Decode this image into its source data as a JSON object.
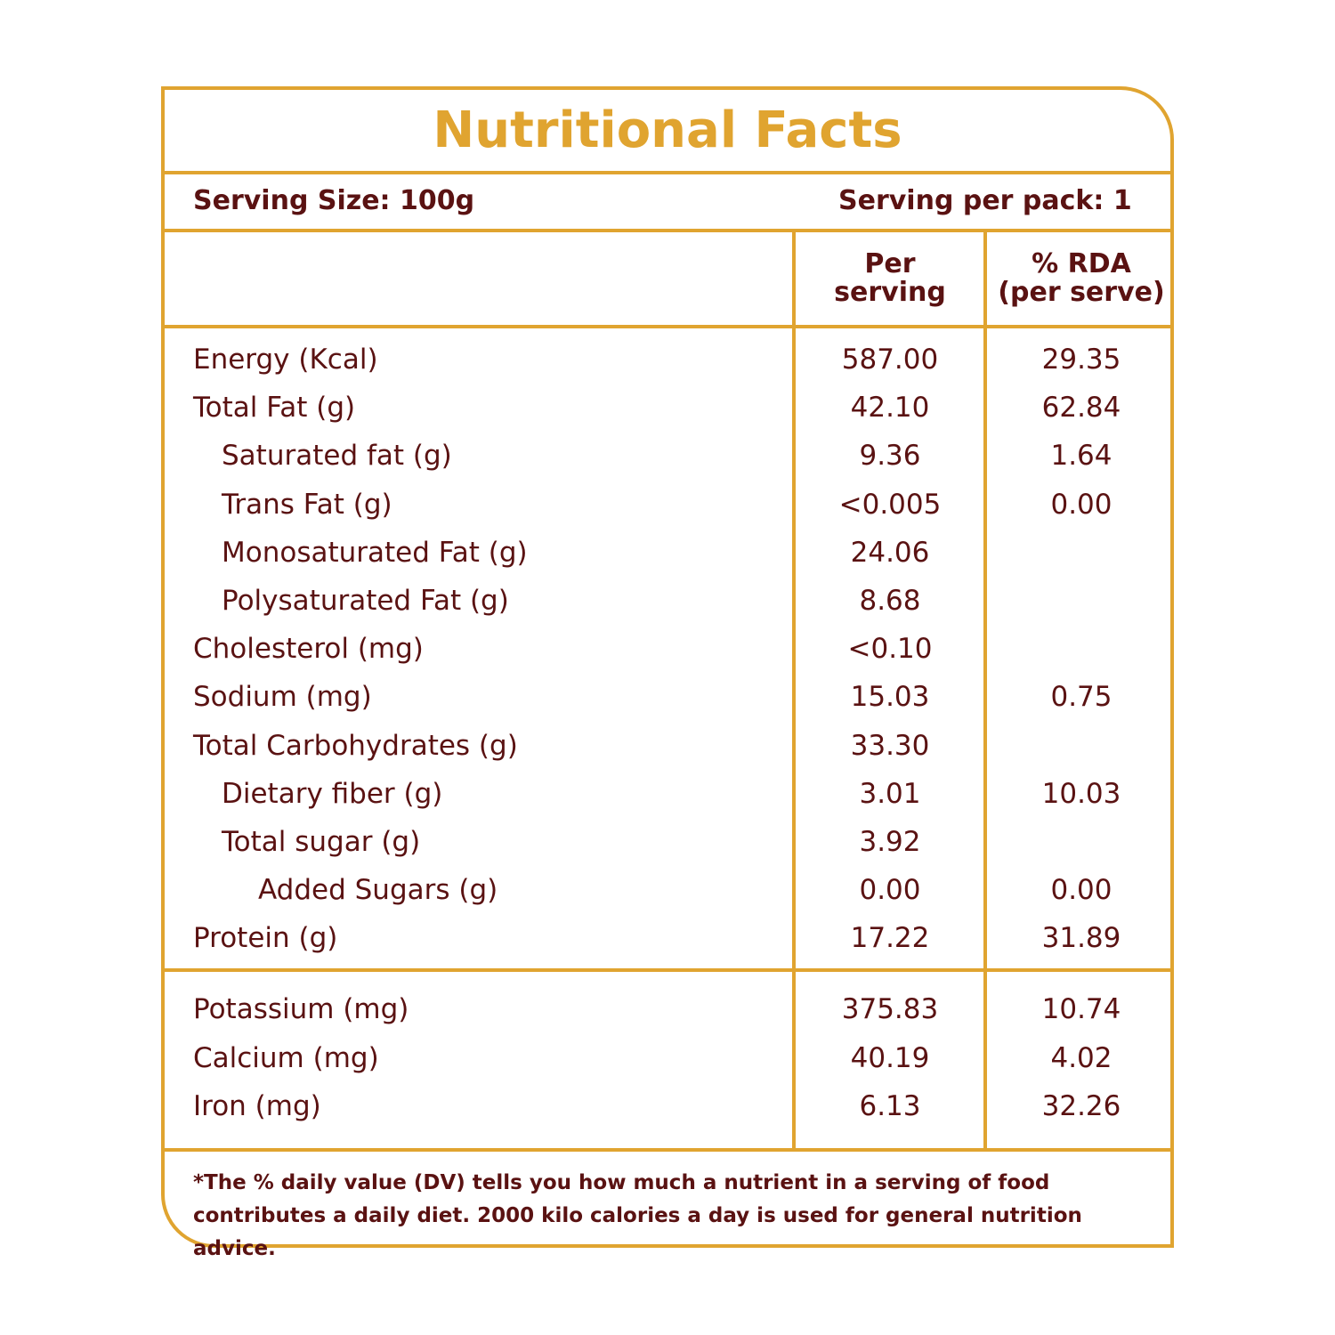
{
  "title": "Nutritional Facts",
  "serving": {
    "size": "Serving Size: 100g",
    "per_pack": "Serving per pack: 1"
  },
  "columns": {
    "per_serving_line1": "Per",
    "per_serving_line2": "serving",
    "rda_line1": "% RDA",
    "rda_line2": "(per serve)"
  },
  "nutrients": [
    {
      "label": "Energy (Kcal)",
      "per": "587.00",
      "rda": "29.35",
      "indent": 0
    },
    {
      "label": "Total Fat (g)",
      "per": "42.10",
      "rda": "62.84",
      "indent": 0
    },
    {
      "label": "Saturated fat (g)",
      "per": "9.36",
      "rda": "1.64",
      "indent": 1
    },
    {
      "label": "Trans Fat (g)",
      "per": "<0.005",
      "rda": "0.00",
      "indent": 1
    },
    {
      "label": "Monosaturated Fat (g)",
      "per": "24.06",
      "rda": "",
      "indent": 1
    },
    {
      "label": "Polysaturated Fat (g)",
      "per": "8.68",
      "rda": "",
      "indent": 1
    },
    {
      "label": "Cholesterol (mg)",
      "per": "<0.10",
      "rda": "",
      "indent": 0
    },
    {
      "label": "Sodium (mg)",
      "per": "15.03",
      "rda": "0.75",
      "indent": 0
    },
    {
      "label": "Total Carbohydrates  (g)",
      "per": "33.30",
      "rda": "",
      "indent": 0
    },
    {
      "label": "Dietary fiber (g)",
      "per": "3.01",
      "rda": "10.03",
      "indent": 1
    },
    {
      "label": "Total sugar (g)",
      "per": "3.92",
      "rda": "",
      "indent": 1
    },
    {
      "label": "Added Sugars (g)",
      "per": "0.00",
      "rda": "0.00",
      "indent": 2
    },
    {
      "label": "Protein (g)",
      "per": "17.22",
      "rda": "31.89",
      "indent": 0
    }
  ],
  "minerals": [
    {
      "label": "Potassium (mg)",
      "per": "375.83",
      "rda": "10.74"
    },
    {
      "label": "Calcium (mg)",
      "per": "40.19",
      "rda": "4.02"
    },
    {
      "label": "Iron (mg)",
      "per": "6.13",
      "rda": "32.26"
    }
  ],
  "footnote": "*The % daily value (DV) tells you how much a nutrient in a serving of food contributes a daily diet. 2000 kilo calories a day is used for general nutrition advice.",
  "colors": {
    "accent": "#e0a430",
    "text": "#5a1212"
  }
}
